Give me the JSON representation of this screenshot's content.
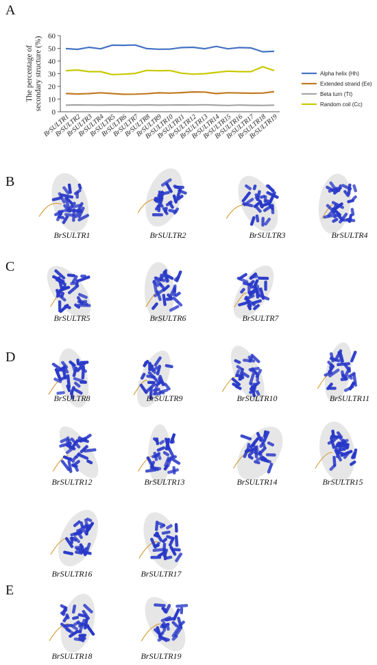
{
  "panels": {
    "a": "A",
    "b": "B",
    "c": "C",
    "d": "D",
    "e": "E"
  },
  "chart_data": {
    "type": "line",
    "title": "",
    "xlabel": "",
    "ylabel": "The percentage of secondary structure (%)",
    "ylim": [
      0,
      60
    ],
    "yticks": [
      0,
      10,
      20,
      30,
      40,
      50,
      60
    ],
    "grid": false,
    "legend_position": "right",
    "categories": [
      "BrSULTR1",
      "BrSULTR2",
      "BrSULTR3",
      "BrSULTR4",
      "BrSULTR5",
      "BrSULTR6",
      "BrSULTR7",
      "BrSULTR8",
      "BrSULTR9",
      "BrSULTR10",
      "BrSULTR11",
      "BrSULTR12",
      "BrSULTR13",
      "BrSULTR14",
      "BrSULTR15",
      "BrSULTR16",
      "BrSULTR17",
      "BrSULTR18",
      "BrSULTR19"
    ],
    "series": [
      {
        "name": "Alpha helix (Hh)",
        "color": "#4472c4",
        "values": [
          49.8,
          49.2,
          50.8,
          49.6,
          52.5,
          52.4,
          52.6,
          49.8,
          49.3,
          49.4,
          50.6,
          50.8,
          49.7,
          51.5,
          49.6,
          50.6,
          50.3,
          47.3,
          47.6
        ]
      },
      {
        "name": "Extended strand (Ee)",
        "color": "#c07a20",
        "values": [
          14.4,
          14.0,
          14.3,
          15.0,
          14.3,
          13.8,
          13.9,
          14.2,
          14.9,
          14.7,
          15.1,
          15.6,
          15.5,
          14.3,
          15.0,
          14.8,
          14.6,
          14.7,
          15.9
        ]
      },
      {
        "name": "Beta turn (Tt)",
        "color": "#a5a5a5",
        "values": [
          5.2,
          5.4,
          5.3,
          5.2,
          5.4,
          5.3,
          5.2,
          5.4,
          5.2,
          5.3,
          5.4,
          5.3,
          5.5,
          5.2,
          5.0,
          5.3,
          5.1,
          5.0,
          5.2
        ]
      },
      {
        "name": "Random coil (Cc)",
        "color": "#c8c800",
        "values": [
          32.4,
          32.9,
          31.6,
          31.6,
          29.3,
          29.6,
          30.2,
          32.6,
          32.3,
          32.5,
          30.4,
          29.6,
          30.0,
          31.0,
          32.0,
          31.6,
          31.6,
          35.5,
          32.5
        ]
      }
    ]
  },
  "structures": [
    {
      "name": "BrSULTR1"
    },
    {
      "name": "BrSULTR2"
    },
    {
      "name": "BrSULTR3"
    },
    {
      "name": "BrSULTR4"
    },
    {
      "name": "BrSULTR5"
    },
    {
      "name": "BrSULTR6"
    },
    {
      "name": "BrSULTR7"
    },
    {
      "name": "BrSULTR8"
    },
    {
      "name": "BrSULTR9"
    },
    {
      "name": "BrSULTR10"
    },
    {
      "name": "BrSULTR11"
    },
    {
      "name": "BrSULTR12"
    },
    {
      "name": "BrSULTR13"
    },
    {
      "name": "BrSULTR14"
    },
    {
      "name": "BrSULTR15"
    },
    {
      "name": "BrSULTR16"
    },
    {
      "name": "BrSULTR17"
    },
    {
      "name": "BrSULTR18"
    },
    {
      "name": "BrSULTR19"
    }
  ],
  "colors": {
    "protein": "#2838c8",
    "coil": "#d8a040",
    "membrane": "#c8c8c8"
  }
}
